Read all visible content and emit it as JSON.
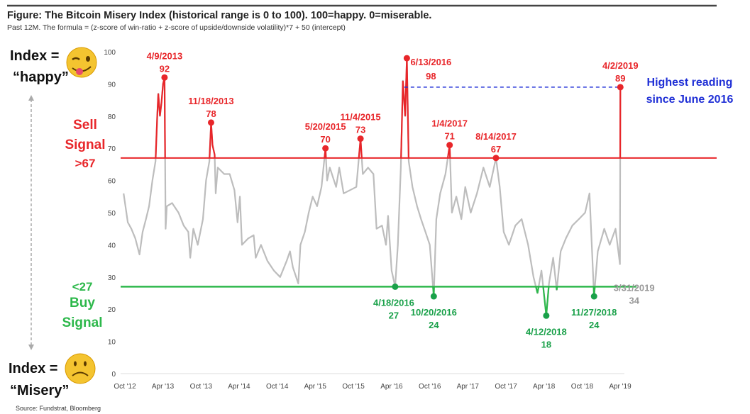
{
  "title": "Figure: The Bitcoin Misery Index (historical range is 0 to 100).  100=happy.  0=miserable.",
  "subtitle": "Past 12M. The formula = (z-score of win-ratio + z-score of upside/downside volatility)*7 + 50 (intercept)",
  "source": "Source: Fundstrat, Bloomberg",
  "side_labels": {
    "happy_line1": "Index =",
    "happy_line2": "“happy”",
    "misery_line1": "Index =",
    "misery_line2": "“Misery”",
    "sell_line1": "Sell",
    "sell_line2": "Signal",
    "sell_line3": ">67",
    "buy_line1": "<27",
    "buy_line2": "Buy",
    "buy_line3": "Signal",
    "happy_icon": "winking-tongue-emoji-icon",
    "misery_icon": "frowning-face-emoji-icon"
  },
  "colors": {
    "series": "#bdbdbd",
    "sell": "#e8262a",
    "buy": "#2db84b",
    "buy_label": "#1aa14a",
    "highlight": "#1f2fd6",
    "latest": "#999999"
  },
  "chart_data": {
    "type": "line",
    "ylim": [
      0,
      100
    ],
    "yticks": [
      0,
      10,
      20,
      30,
      40,
      50,
      60,
      70,
      80,
      90,
      100
    ],
    "xlim": [
      "2012-10-01",
      "2019-04-01"
    ],
    "xticks": [
      {
        "date": "2012-10-01",
        "label": "Oct '12"
      },
      {
        "date": "2013-04-01",
        "label": "Apr '13"
      },
      {
        "date": "2013-10-01",
        "label": "Oct '13"
      },
      {
        "date": "2014-04-01",
        "label": "Apr '14"
      },
      {
        "date": "2014-10-01",
        "label": "Oct '14"
      },
      {
        "date": "2015-04-01",
        "label": "Apr '15"
      },
      {
        "date": "2015-10-01",
        "label": "Oct '15"
      },
      {
        "date": "2016-04-01",
        "label": "Apr '16"
      },
      {
        "date": "2016-10-01",
        "label": "Oct '16"
      },
      {
        "date": "2017-04-01",
        "label": "Apr '17"
      },
      {
        "date": "2017-10-01",
        "label": "Oct '17"
      },
      {
        "date": "2018-04-01",
        "label": "Apr '18"
      },
      {
        "date": "2018-10-01",
        "label": "Oct '18"
      },
      {
        "date": "2019-04-01",
        "label": "Apr '19"
      }
    ],
    "thresholds": {
      "sell": 67,
      "buy": 27
    },
    "highlight": {
      "value": 89,
      "from": "2016-06-01",
      "to": "2019-04-02",
      "text_line1": "Highest reading",
      "text_line2": "since June 2016"
    },
    "series": [
      [
        "2012-09-25",
        56
      ],
      [
        "2012-10-15",
        47
      ],
      [
        "2012-11-01",
        45
      ],
      [
        "2012-11-20",
        42
      ],
      [
        "2012-12-10",
        37
      ],
      [
        "2012-12-25",
        44
      ],
      [
        "2013-01-10",
        48
      ],
      [
        "2013-01-25",
        52
      ],
      [
        "2013-02-10",
        60
      ],
      [
        "2013-02-25",
        66
      ],
      [
        "2013-03-05",
        80
      ],
      [
        "2013-03-10",
        87
      ],
      [
        "2013-03-18",
        80
      ],
      [
        "2013-03-25",
        84
      ],
      [
        "2013-04-02",
        90
      ],
      [
        "2013-04-09",
        92
      ],
      [
        "2013-04-14",
        45
      ],
      [
        "2013-04-20",
        52
      ],
      [
        "2013-05-15",
        53
      ],
      [
        "2013-06-15",
        50
      ],
      [
        "2013-07-10",
        46
      ],
      [
        "2013-08-01",
        44
      ],
      [
        "2013-08-10",
        36
      ],
      [
        "2013-08-25",
        45
      ],
      [
        "2013-09-15",
        40
      ],
      [
        "2013-10-10",
        48
      ],
      [
        "2013-10-25",
        60
      ],
      [
        "2013-11-10",
        66
      ],
      [
        "2013-11-18",
        78
      ],
      [
        "2013-11-25",
        71
      ],
      [
        "2013-12-05",
        68
      ],
      [
        "2013-12-10",
        56
      ],
      [
        "2013-12-20",
        64
      ],
      [
        "2014-01-20",
        62
      ],
      [
        "2014-02-15",
        62
      ],
      [
        "2014-03-10",
        57
      ],
      [
        "2014-03-25",
        47
      ],
      [
        "2014-04-05",
        55
      ],
      [
        "2014-04-15",
        40
      ],
      [
        "2014-05-15",
        42
      ],
      [
        "2014-06-10",
        43
      ],
      [
        "2014-06-20",
        36
      ],
      [
        "2014-07-15",
        40
      ],
      [
        "2014-08-15",
        35
      ],
      [
        "2014-09-15",
        32
      ],
      [
        "2014-10-15",
        30
      ],
      [
        "2014-11-15",
        35
      ],
      [
        "2014-12-01",
        38
      ],
      [
        "2014-12-15",
        33
      ],
      [
        "2015-01-10",
        28
      ],
      [
        "2015-01-20",
        40
      ],
      [
        "2015-02-10",
        44
      ],
      [
        "2015-03-01",
        50
      ],
      [
        "2015-03-20",
        55
      ],
      [
        "2015-04-10",
        52
      ],
      [
        "2015-05-01",
        58
      ],
      [
        "2015-05-20",
        70
      ],
      [
        "2015-05-28",
        60
      ],
      [
        "2015-06-10",
        64
      ],
      [
        "2015-07-10",
        58
      ],
      [
        "2015-07-25",
        64
      ],
      [
        "2015-08-15",
        56
      ],
      [
        "2015-09-15",
        57
      ],
      [
        "2015-10-15",
        58
      ],
      [
        "2015-11-04",
        73
      ],
      [
        "2015-11-15",
        62
      ],
      [
        "2015-12-10",
        64
      ],
      [
        "2016-01-05",
        62
      ],
      [
        "2016-01-20",
        45
      ],
      [
        "2016-02-15",
        46
      ],
      [
        "2016-03-05",
        40
      ],
      [
        "2016-03-15",
        49
      ],
      [
        "2016-04-01",
        32
      ],
      [
        "2016-04-18",
        27
      ],
      [
        "2016-05-01",
        40
      ],
      [
        "2016-05-15",
        64
      ],
      [
        "2016-05-25",
        91
      ],
      [
        "2016-06-05",
        80
      ],
      [
        "2016-06-13",
        98
      ],
      [
        "2016-06-22",
        66
      ],
      [
        "2016-07-10",
        58
      ],
      [
        "2016-08-01",
        52
      ],
      [
        "2016-08-20",
        48
      ],
      [
        "2016-09-10",
        44
      ],
      [
        "2016-10-01",
        40
      ],
      [
        "2016-10-20",
        24
      ],
      [
        "2016-11-01",
        48
      ],
      [
        "2016-11-20",
        56
      ],
      [
        "2016-12-15",
        62
      ],
      [
        "2017-01-04",
        71
      ],
      [
        "2017-01-15",
        50
      ],
      [
        "2017-02-05",
        55
      ],
      [
        "2017-03-01",
        48
      ],
      [
        "2017-03-20",
        58
      ],
      [
        "2017-04-15",
        50
      ],
      [
        "2017-05-15",
        56
      ],
      [
        "2017-06-15",
        64
      ],
      [
        "2017-07-15",
        58
      ],
      [
        "2017-08-14",
        67
      ],
      [
        "2017-09-01",
        58
      ],
      [
        "2017-09-20",
        44
      ],
      [
        "2017-10-15",
        40
      ],
      [
        "2017-11-15",
        46
      ],
      [
        "2017-12-15",
        48
      ],
      [
        "2018-01-15",
        40
      ],
      [
        "2018-02-10",
        30
      ],
      [
        "2018-03-01",
        25
      ],
      [
        "2018-03-20",
        32
      ],
      [
        "2018-04-12",
        18
      ],
      [
        "2018-04-25",
        28
      ],
      [
        "2018-05-15",
        36
      ],
      [
        "2018-06-01",
        26
      ],
      [
        "2018-06-20",
        38
      ],
      [
        "2018-07-15",
        42
      ],
      [
        "2018-08-15",
        46
      ],
      [
        "2018-09-15",
        48
      ],
      [
        "2018-10-15",
        50
      ],
      [
        "2018-11-05",
        56
      ],
      [
        "2018-11-27",
        24
      ],
      [
        "2018-12-15",
        38
      ],
      [
        "2019-01-15",
        45
      ],
      [
        "2019-02-10",
        40
      ],
      [
        "2019-03-10",
        45
      ],
      [
        "2019-03-31",
        34
      ],
      [
        "2019-04-02",
        89
      ]
    ],
    "annotations": [
      {
        "date": "2013-04-09",
        "value": 92,
        "label": "4/9/2013",
        "kind": "sell"
      },
      {
        "date": "2013-11-18",
        "value": 78,
        "label": "11/18/2013",
        "kind": "sell"
      },
      {
        "date": "2015-05-20",
        "value": 70,
        "label": "5/20/2015",
        "kind": "sell"
      },
      {
        "date": "2015-11-04",
        "value": 73,
        "label": "11/4/2015",
        "kind": "sell"
      },
      {
        "date": "2016-06-13",
        "value": 98,
        "label": "6/13/2016",
        "kind": "sell"
      },
      {
        "date": "2017-01-04",
        "value": 71,
        "label": "1/4/2017",
        "kind": "sell"
      },
      {
        "date": "2017-08-14",
        "value": 67,
        "label": "8/14/2017",
        "kind": "sell"
      },
      {
        "date": "2019-04-02",
        "value": 89,
        "label": "4/2/2019",
        "kind": "sell"
      },
      {
        "date": "2016-04-18",
        "value": 27,
        "label": "4/18/2016",
        "kind": "buy"
      },
      {
        "date": "2016-10-20",
        "value": 24,
        "label": "10/20/2016",
        "kind": "buy"
      },
      {
        "date": "2018-04-12",
        "value": 18,
        "label": "4/12/2018",
        "kind": "buy"
      },
      {
        "date": "2018-11-27",
        "value": 24,
        "label": "11/27/2018",
        "kind": "buy"
      },
      {
        "date": "2019-03-31",
        "value": 34,
        "label": "3/31/2019",
        "kind": "latest"
      }
    ]
  }
}
